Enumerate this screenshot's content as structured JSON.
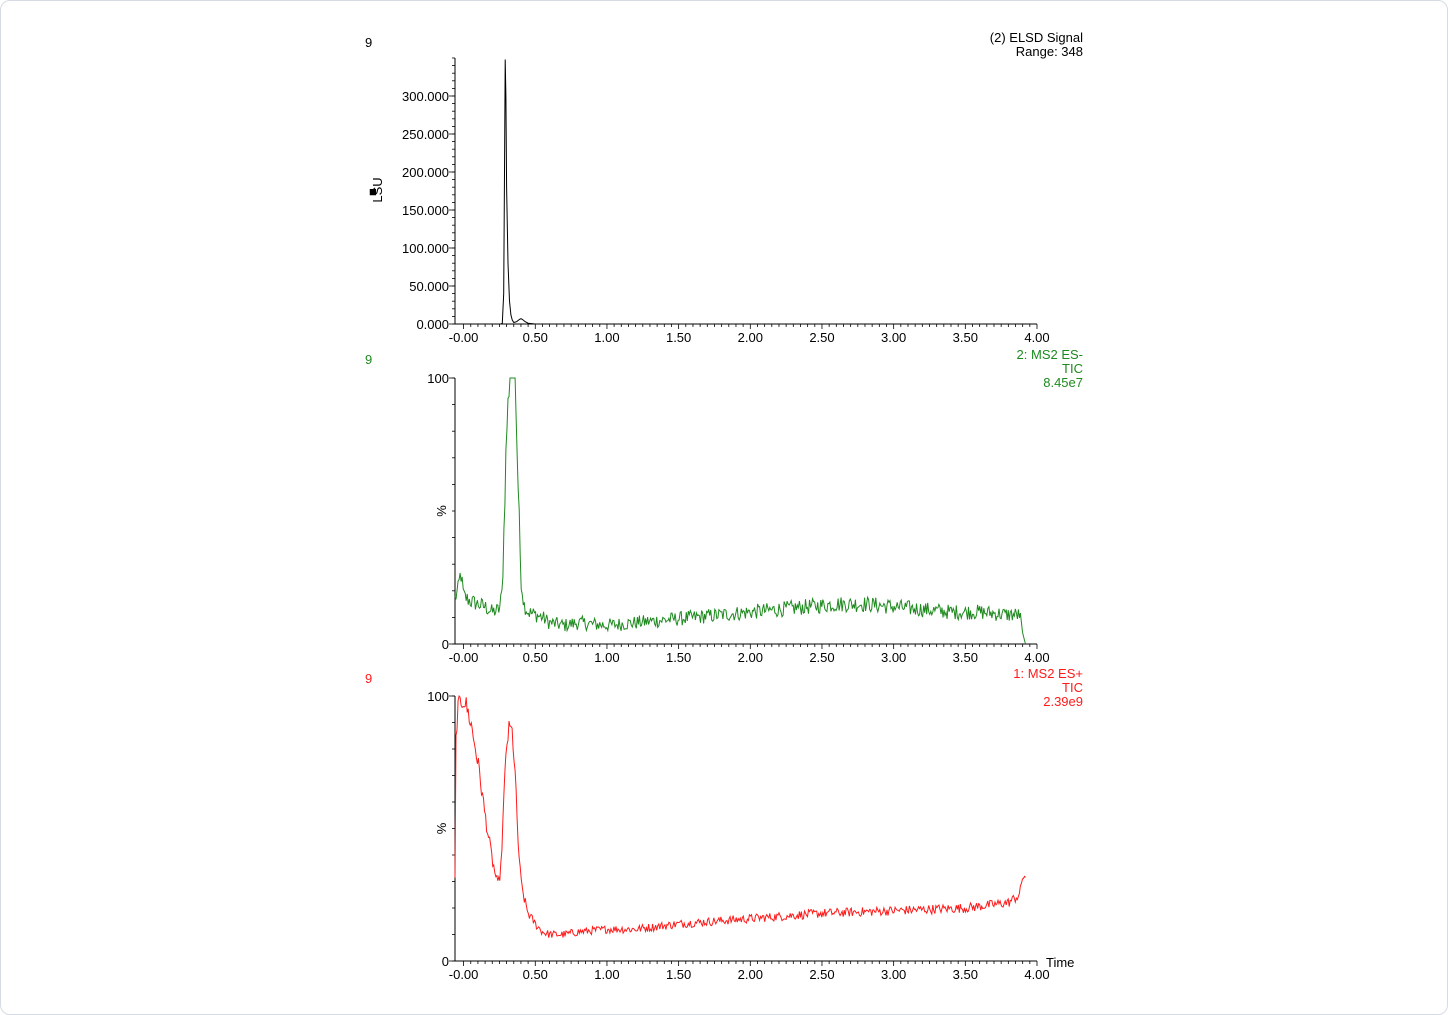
{
  "chart_data": [
    {
      "type": "line",
      "sample_label": "9",
      "trace_title": "(2) ELSD Signal",
      "trace_info": [
        "Range: 348"
      ],
      "ylabel": "LSU",
      "ylabel_marker": "■",
      "color": "#000000",
      "xlim": [
        -0.06,
        4.0
      ],
      "ylim": [
        0,
        350
      ],
      "x_ticks": [
        -0.0,
        0.5,
        1.0,
        1.5,
        2.0,
        2.5,
        3.0,
        3.5,
        4.0
      ],
      "x_tick_labels": [
        "-0.00",
        "0.50",
        "1.00",
        "1.50",
        "2.00",
        "2.50",
        "3.00",
        "3.50",
        "4.00"
      ],
      "y_ticks": [
        0,
        50,
        100,
        150,
        200,
        250,
        300
      ],
      "y_tick_labels": [
        "0.000",
        "50.000",
        "100.000",
        "150.000",
        "200.000",
        "250.000",
        "300.000"
      ],
      "x": [
        -0.06,
        0.0,
        0.1,
        0.2,
        0.24,
        0.26,
        0.27,
        0.28,
        0.285,
        0.29,
        0.295,
        0.3,
        0.31,
        0.32,
        0.33,
        0.34,
        0.35,
        0.37,
        0.39,
        0.4,
        0.41,
        0.43,
        0.45,
        0.5,
        0.6,
        1.0,
        2.0,
        3.0,
        4.0
      ],
      "y": [
        0,
        0,
        0,
        0,
        0,
        0,
        1,
        40,
        200,
        348,
        300,
        180,
        80,
        30,
        12,
        5,
        2,
        3,
        6,
        7,
        6,
        3,
        1,
        0,
        0,
        0,
        0,
        0,
        0
      ]
    },
    {
      "type": "line",
      "sample_label": "9",
      "trace_title": "2: MS2 ES-",
      "trace_info": [
        "TIC",
        "8.45e7"
      ],
      "ylabel": "%",
      "color": "#1e8a1e",
      "xlim": [
        -0.06,
        4.0
      ],
      "ylim": [
        0,
        100
      ],
      "x_ticks": [
        -0.0,
        0.5,
        1.0,
        1.5,
        2.0,
        2.5,
        3.0,
        3.5,
        4.0
      ],
      "x_tick_labels": [
        "-0.00",
        "0.50",
        "1.00",
        "1.50",
        "2.00",
        "2.50",
        "3.00",
        "3.50",
        "4.00"
      ],
      "y_ticks": [
        0,
        100
      ],
      "y_tick_labels": [
        "0",
        "100"
      ],
      "x": [
        -0.06,
        -0.04,
        -0.02,
        0.0,
        0.05,
        0.1,
        0.15,
        0.2,
        0.25,
        0.27,
        0.3,
        0.32,
        0.34,
        0.36,
        0.38,
        0.4,
        0.42,
        0.45,
        0.5,
        0.55,
        0.6,
        0.7,
        0.8,
        1.0,
        1.2,
        1.4,
        1.6,
        1.8,
        2.0,
        2.2,
        2.4,
        2.6,
        2.8,
        3.0,
        3.2,
        3.4,
        3.6,
        3.8,
        3.88,
        3.9,
        3.92
      ],
      "y": [
        17,
        20,
        27,
        18,
        16,
        15,
        14,
        12,
        13,
        20,
        80,
        100,
        100,
        100,
        60,
        25,
        15,
        12,
        11,
        10,
        8,
        7,
        8,
        7,
        8,
        9,
        10,
        11,
        12,
        13,
        14,
        15,
        15,
        14,
        13,
        12,
        12,
        11,
        11,
        4,
        0
      ],
      "noise": 2.2
    },
    {
      "type": "line",
      "sample_label": "9",
      "trace_title": "1: MS2 ES+",
      "trace_info": [
        "TIC",
        "2.39e9"
      ],
      "ylabel": "%",
      "xlabel": "Time",
      "color": "#ff1a1a",
      "xlim": [
        -0.06,
        4.0
      ],
      "ylim": [
        0,
        100
      ],
      "x_ticks": [
        -0.0,
        0.5,
        1.0,
        1.5,
        2.0,
        2.5,
        3.0,
        3.5,
        4.0
      ],
      "x_tick_labels": [
        "-0.00",
        "0.50",
        "1.00",
        "1.50",
        "2.00",
        "2.50",
        "3.00",
        "3.50",
        "4.00"
      ],
      "y_ticks": [
        0,
        100
      ],
      "y_tick_labels": [
        "0",
        "100"
      ],
      "x": [
        -0.06,
        -0.055,
        -0.05,
        -0.04,
        -0.02,
        0.0,
        0.02,
        0.05,
        0.1,
        0.15,
        0.2,
        0.24,
        0.26,
        0.28,
        0.3,
        0.32,
        0.34,
        0.36,
        0.38,
        0.4,
        0.42,
        0.45,
        0.5,
        0.55,
        0.6,
        0.7,
        0.8,
        1.0,
        1.2,
        1.5,
        2.0,
        2.5,
        3.0,
        3.5,
        3.8,
        3.88,
        3.9,
        3.92
      ],
      "y": [
        30,
        80,
        88,
        95,
        98,
        99,
        96,
        90,
        75,
        55,
        38,
        28,
        35,
        60,
        82,
        88,
        86,
        70,
        45,
        30,
        24,
        18,
        14,
        11,
        10,
        10,
        11,
        12,
        12,
        14,
        16,
        18,
        19,
        20,
        22,
        25,
        32,
        32
      ],
      "noise": 1.2
    }
  ]
}
